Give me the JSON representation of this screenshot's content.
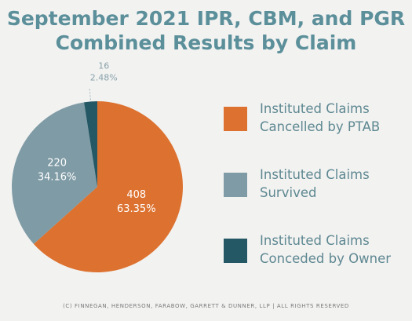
{
  "chart_data": {
    "type": "pie",
    "title": "September 2021 IPR, CBM, and PGR\nCombined Results by Claim",
    "series": [
      {
        "slices": [
          {
            "label": "Instituted Claims\nCancelled by PTAB",
            "value": 408,
            "percent": "63.35%",
            "color": "#dd7230"
          },
          {
            "label": "Instituted Claims\nSurvived",
            "value": 220,
            "percent": "34.16%",
            "color": "#7f9ba5"
          },
          {
            "label": "Instituted Claims\nConceded by Owner",
            "value": 16,
            "percent": "2.48%",
            "color": "#245865"
          }
        ]
      }
    ],
    "legend_position": "right"
  },
  "footer": "(C) FINNEGAN, HENDERSON, FARABOW, GARRETT & DUNNER, LLP | ALL RIGHTS RESERVED"
}
